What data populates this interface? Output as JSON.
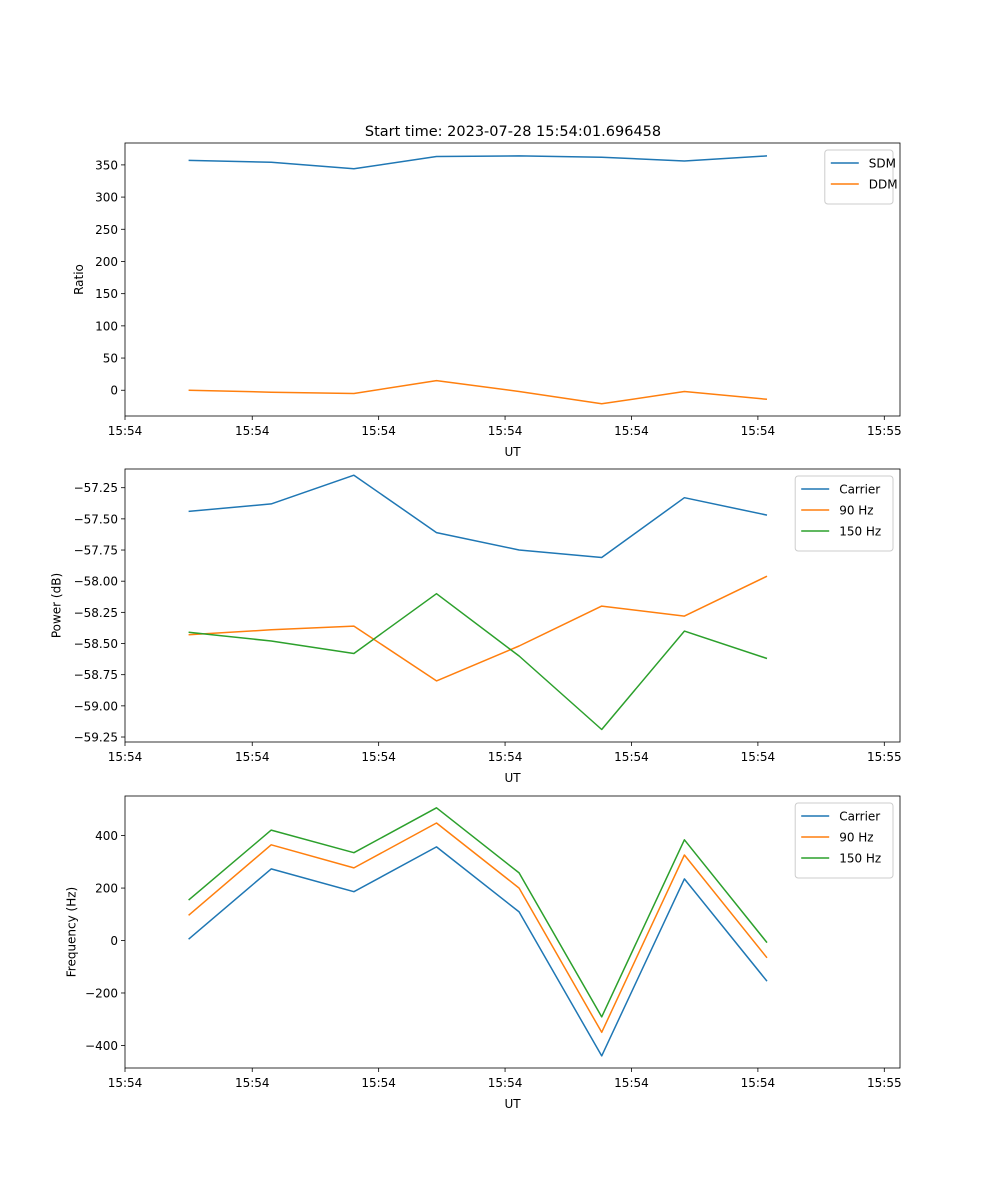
{
  "figure": {
    "title": "Start time: 2023-07-28 15:54:01.696458"
  },
  "chart_data": [
    {
      "type": "line",
      "title": "Start time: 2023-07-28 15:54:01.696458",
      "xlabel": "UT",
      "ylabel": "Ratio",
      "xlim": [
        -0.77,
        8.61
      ],
      "ylim": [
        -40,
        384
      ],
      "x": [
        0,
        1,
        2,
        3,
        4,
        5,
        6,
        7
      ],
      "xticks": [
        -0.77,
        0.77,
        2.3,
        3.83,
        5.36,
        6.89,
        8.42
      ],
      "xtick_labels": [
        "15:54",
        "15:54",
        "15:54",
        "15:54",
        "15:54",
        "15:54",
        "15:55"
      ],
      "yticks": [
        0,
        50,
        100,
        150,
        200,
        250,
        300,
        350
      ],
      "ytick_labels": [
        "0",
        "50",
        "100",
        "150",
        "200",
        "250",
        "300",
        "350"
      ],
      "legend_position": "upper right",
      "series": [
        {
          "name": "SDM",
          "color": "#1f77b4",
          "values": [
            357,
            354,
            344,
            363,
            364,
            362,
            356,
            364
          ]
        },
        {
          "name": "DDM",
          "color": "#ff7f0e",
          "values": [
            0,
            -3,
            -5,
            15,
            -2,
            -21,
            -2,
            -14
          ]
        }
      ]
    },
    {
      "type": "line",
      "title": "",
      "xlabel": "UT",
      "ylabel": "Power (dB)",
      "xlim": [
        -0.77,
        8.61
      ],
      "ylim": [
        -59.29,
        -57.1
      ],
      "x": [
        0,
        1,
        2,
        3,
        4,
        5,
        6,
        7
      ],
      "xticks": [
        -0.77,
        0.77,
        2.3,
        3.83,
        5.36,
        6.89,
        8.42
      ],
      "xtick_labels": [
        "15:54",
        "15:54",
        "15:54",
        "15:54",
        "15:54",
        "15:54",
        "15:55"
      ],
      "yticks": [
        -59.25,
        -59.0,
        -58.75,
        -58.5,
        -58.25,
        -58.0,
        -57.75,
        -57.5,
        -57.25
      ],
      "ytick_labels": [
        "−59.25",
        "−59.00",
        "−58.75",
        "−58.50",
        "−58.25",
        "−58.00",
        "−57.75",
        "−57.50",
        "−57.25"
      ],
      "legend_position": "upper right",
      "series": [
        {
          "name": "Carrier",
          "color": "#1f77b4",
          "values": [
            -57.44,
            -57.38,
            -57.15,
            -57.61,
            -57.75,
            -57.81,
            -57.33,
            -57.47
          ]
        },
        {
          "name": "90 Hz",
          "color": "#ff7f0e",
          "values": [
            -58.43,
            -58.39,
            -58.36,
            -58.8,
            -58.52,
            -58.2,
            -58.28,
            -57.96
          ]
        },
        {
          "name": "150 Hz",
          "color": "#2ca02c",
          "values": [
            -58.41,
            -58.48,
            -58.58,
            -58.1,
            -58.6,
            -59.19,
            -58.4,
            -58.62
          ]
        }
      ]
    },
    {
      "type": "line",
      "title": "",
      "xlabel": "UT",
      "ylabel": "Frequency (Hz)",
      "xlim": [
        -0.77,
        8.61
      ],
      "ylim": [
        -486,
        551
      ],
      "x": [
        0,
        1,
        2,
        3,
        4,
        5,
        6,
        7
      ],
      "xticks": [
        -0.77,
        0.77,
        2.3,
        3.83,
        5.36,
        6.89,
        8.42
      ],
      "xtick_labels": [
        "15:54",
        "15:54",
        "15:54",
        "15:54",
        "15:54",
        "15:54",
        "15:55"
      ],
      "yticks": [
        -400,
        -200,
        0,
        200,
        400
      ],
      "ytick_labels": [
        "−400",
        "−200",
        "0",
        "200",
        "400"
      ],
      "legend_position": "upper right",
      "series": [
        {
          "name": "Carrier",
          "color": "#1f77b4",
          "values": [
            5,
            273,
            186,
            357,
            109,
            -440,
            235,
            -155
          ]
        },
        {
          "name": "90 Hz",
          "color": "#ff7f0e",
          "values": [
            96,
            365,
            277,
            448,
            200,
            -350,
            326,
            -66
          ]
        },
        {
          "name": "150 Hz",
          "color": "#2ca02c",
          "values": [
            154,
            421,
            335,
            506,
            258,
            -291,
            384,
            -8
          ]
        }
      ]
    }
  ]
}
